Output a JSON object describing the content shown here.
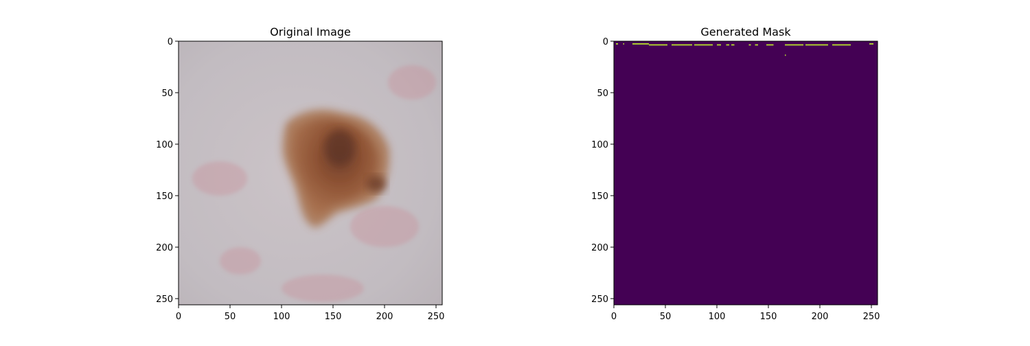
{
  "chart_data": [
    {
      "type": "image",
      "title": "Original Image",
      "xticks": [
        0,
        50,
        100,
        150,
        200,
        250
      ],
      "yticks": [
        0,
        50,
        100,
        150,
        200,
        250
      ],
      "xlim": [
        0,
        256
      ],
      "ylim": [
        256,
        0
      ],
      "content": "dermoscopy skin lesion photograph",
      "colors": {
        "skin": "#c8bfc3",
        "lesion": "#8a4a2a",
        "lesion_dark": "#5e3426"
      }
    },
    {
      "type": "heatmap",
      "title": "Generated Mask",
      "xticks": [
        0,
        50,
        100,
        150,
        200,
        250
      ],
      "yticks": [
        0,
        50,
        100,
        150,
        200,
        250
      ],
      "xlim": [
        0,
        256
      ],
      "ylim": [
        256,
        0
      ],
      "colormap": "viridis",
      "colors": {
        "background": "#440154",
        "foreground": "#b5de2b"
      },
      "foreground_segments": [
        {
          "row": 2,
          "x_start": 2,
          "x_end": 4
        },
        {
          "row": 2,
          "x_start": 9,
          "x_end": 10
        },
        {
          "row": 2,
          "x_start": 18,
          "x_end": 34
        },
        {
          "row": 3,
          "x_start": 34,
          "x_end": 52
        },
        {
          "row": 3,
          "x_start": 56,
          "x_end": 76
        },
        {
          "row": 3,
          "x_start": 78,
          "x_end": 96
        },
        {
          "row": 3,
          "x_start": 100,
          "x_end": 104
        },
        {
          "row": 3,
          "x_start": 109,
          "x_end": 112
        },
        {
          "row": 3,
          "x_start": 114,
          "x_end": 117
        },
        {
          "row": 3,
          "x_start": 131,
          "x_end": 133
        },
        {
          "row": 3,
          "x_start": 137,
          "x_end": 140
        },
        {
          "row": 3,
          "x_start": 148,
          "x_end": 155
        },
        {
          "row": 3,
          "x_start": 166,
          "x_end": 184
        },
        {
          "row": 3,
          "x_start": 186,
          "x_end": 208
        },
        {
          "row": 3,
          "x_start": 212,
          "x_end": 230
        },
        {
          "row": 2,
          "x_start": 248,
          "x_end": 252
        },
        {
          "row": 13,
          "x_start": 166,
          "x_end": 167
        }
      ]
    }
  ]
}
